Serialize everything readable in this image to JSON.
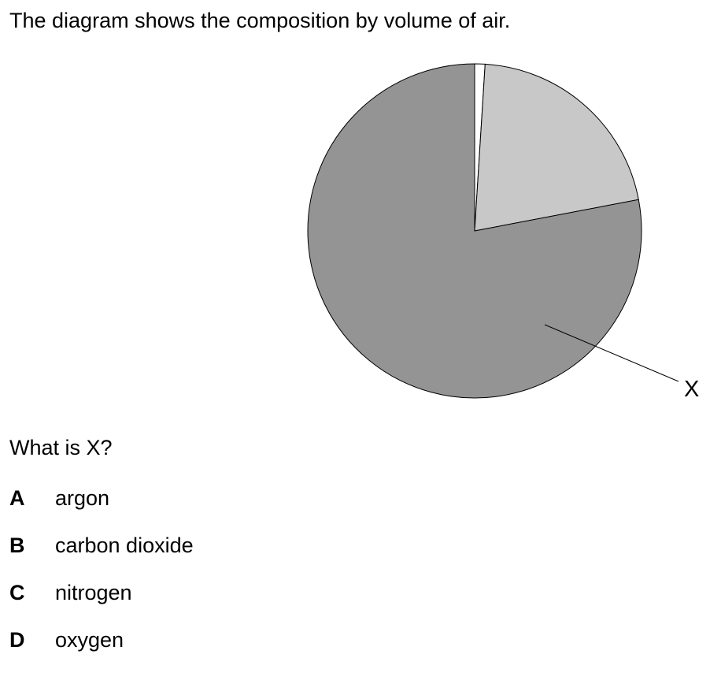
{
  "intro": "The diagram shows the composition by volume of air.",
  "question": "What is X?",
  "options": [
    {
      "letter": "A",
      "text": "argon"
    },
    {
      "letter": "B",
      "text": "carbon dioxide"
    },
    {
      "letter": "C",
      "text": "nitrogen"
    },
    {
      "letter": "D",
      "text": "oxygen"
    }
  ],
  "chart_data": {
    "type": "pie",
    "title": "",
    "slices": [
      {
        "label": "X",
        "value": 78,
        "color": "#949494"
      },
      {
        "label": "",
        "value": 21,
        "color": "#c8c8c8"
      },
      {
        "label": "",
        "value": 1,
        "color": "#ffffff"
      }
    ],
    "stroke_color": "#000000",
    "pointer_label": "X"
  }
}
